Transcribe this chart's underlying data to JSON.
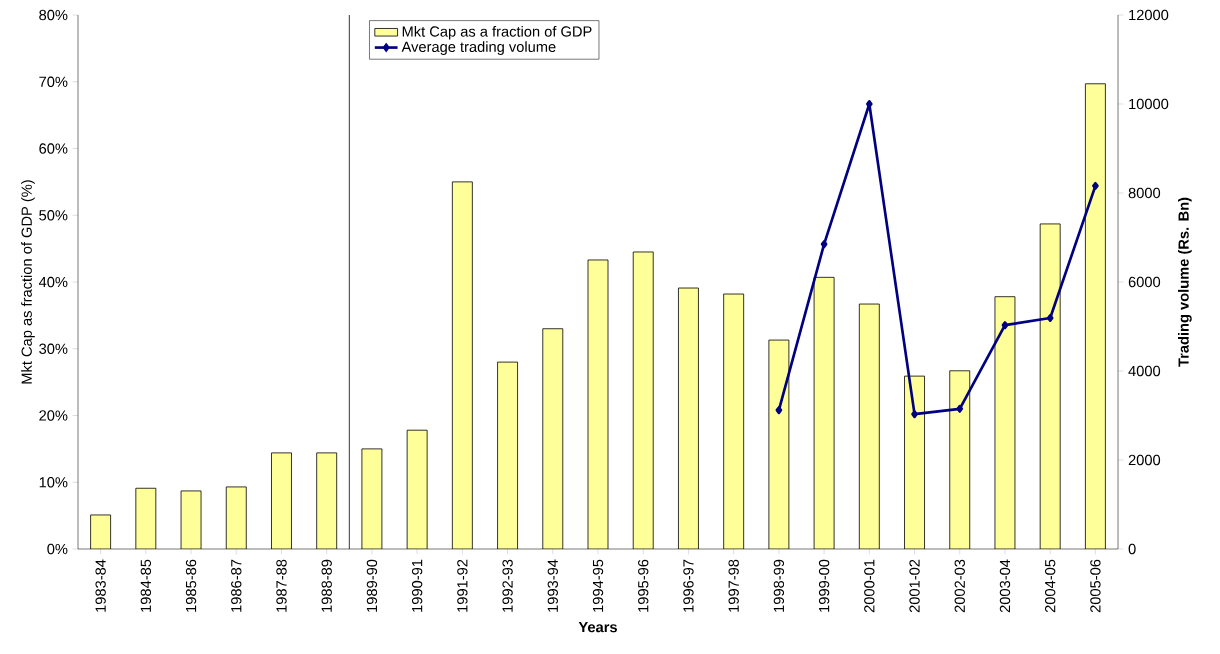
{
  "chart_data": {
    "type": "bar",
    "xlabel": "Years",
    "ylabel": "Mkt Cap as fraction of GDP (%)",
    "y2label": "Trading volume (Rs. Bn)",
    "categories": [
      "1983-84",
      "1984-85",
      "1985-86",
      "1986-87",
      "1987-88",
      "1988-89",
      "1989-90",
      "1990-91",
      "1991-92",
      "1992-93",
      "1993-94",
      "1994-95",
      "1995-96",
      "1996-97",
      "1997-98",
      "1998-99",
      "1999-00",
      "2000-01",
      "2001-02",
      "2002-03",
      "2003-04",
      "2004-05",
      "2005-06"
    ],
    "series": [
      {
        "name": "Mkt Cap as a fraction of GDP",
        "color": "#ffff99",
        "values": [
          5.1,
          9.1,
          8.7,
          9.3,
          14.4,
          14.4,
          15.0,
          17.8,
          55.0,
          28.0,
          33.0,
          43.3,
          44.5,
          39.1,
          38.2,
          31.3,
          40.7,
          36.7,
          25.9,
          26.7,
          37.8,
          48.7,
          69.7
        ]
      },
      {
        "name": "Average trading volume",
        "type": "line",
        "axis": "y2",
        "color": "#000080",
        "marker": "diamond",
        "values": [
          null,
          null,
          null,
          null,
          null,
          null,
          null,
          null,
          null,
          null,
          null,
          null,
          null,
          null,
          null,
          3120,
          6850,
          10000,
          3030,
          3150,
          5030,
          5190,
          8160
        ]
      }
    ],
    "ylim": [
      0,
      80
    ],
    "yticks": [
      {
        "value": 0,
        "label": "0%"
      },
      {
        "value": 10,
        "label": "10%"
      },
      {
        "value": 20,
        "label": "20%"
      },
      {
        "value": 30,
        "label": "30%"
      },
      {
        "value": 40,
        "label": "40%"
      },
      {
        "value": 50,
        "label": "50%"
      },
      {
        "value": 60,
        "label": "60%"
      },
      {
        "value": 70,
        "label": "70%"
      },
      {
        "value": 80,
        "label": "80%"
      }
    ],
    "y2lim": [
      0,
      12000
    ],
    "y2ticks": [
      0,
      2000,
      4000,
      6000,
      8000,
      10000,
      12000
    ],
    "legend": "top",
    "grid": false
  }
}
